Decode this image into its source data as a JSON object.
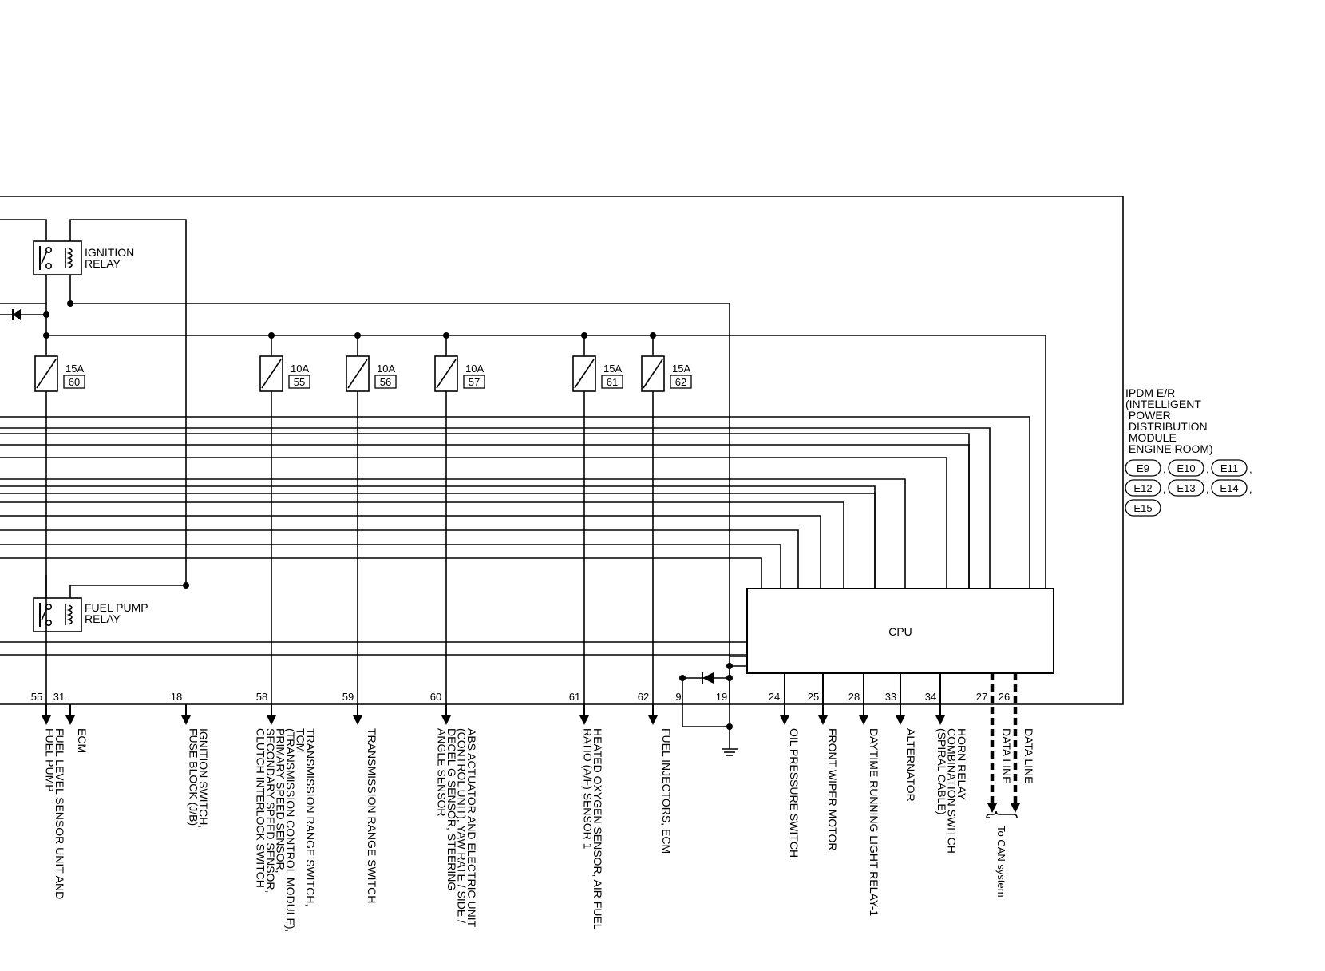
{
  "relays": {
    "ignition": "IGNITION\nRELAY",
    "fuel_pump": "FUEL PUMP\nRELAY"
  },
  "fuses": [
    {
      "amp": "15A",
      "num": "60"
    },
    {
      "amp": "10A",
      "num": "55"
    },
    {
      "amp": "10A",
      "num": "56"
    },
    {
      "amp": "10A",
      "num": "57"
    },
    {
      "amp": "15A",
      "num": "61"
    },
    {
      "amp": "15A",
      "num": "62"
    }
  ],
  "cpu": "CPU",
  "module": {
    "title": "IPDM E/R\n(INTELLIGENT\n POWER\n DISTRIBUTION\n MODULE\n ENGINE ROOM)",
    "connectors": [
      "E9",
      "E10",
      "E11",
      "E12",
      "E13",
      "E14",
      "E15"
    ]
  },
  "pins": [
    "55",
    "31",
    "18",
    "58",
    "59",
    "60",
    "61",
    "62",
    "9",
    "19",
    "24",
    "25",
    "28",
    "33",
    "34",
    "27",
    "26"
  ],
  "destinations": [
    "FUEL LEVEL SENSOR UNIT AND\nFUEL PUMP",
    "ECM",
    "IGNITION SWITCH,\nFUSE BLOCK (J/B)",
    "TRANSMISSION RANGE SWITCH,\nTCM\n(TRANSMISSION CONTROL MODULE),\nPRIMARY SPEED SENSOR,\nSECONDARY SPEED SENSOR,\nCLUTCH INTERLOCK SWITCH",
    "TRANSMISSION RANGE SWITCH",
    "ABS ACTUATOR AND ELECTRIC UNIT\n(CONTROL UNIT), YAW RATE / SIDE /\nDECEL G SENSOR, STEERING\nANGLE SENSOR",
    "HEATED OXYGEN SENSOR, AIR FUEL\nRATIO (A/F) SENSOR 1",
    "FUEL INJECTORS, ECM",
    "OIL PRESSURE SWITCH",
    "FRONT WIPER MOTOR",
    "DAYTIME RUNNING LIGHT RELAY-1",
    "ALTERNATOR",
    "HORN RELAY\nCOMBINATION SWITCH\n(SPIRAL CABLE)",
    "DATA LINE",
    "DATA LINE"
  ],
  "can_label": "To CAN system"
}
